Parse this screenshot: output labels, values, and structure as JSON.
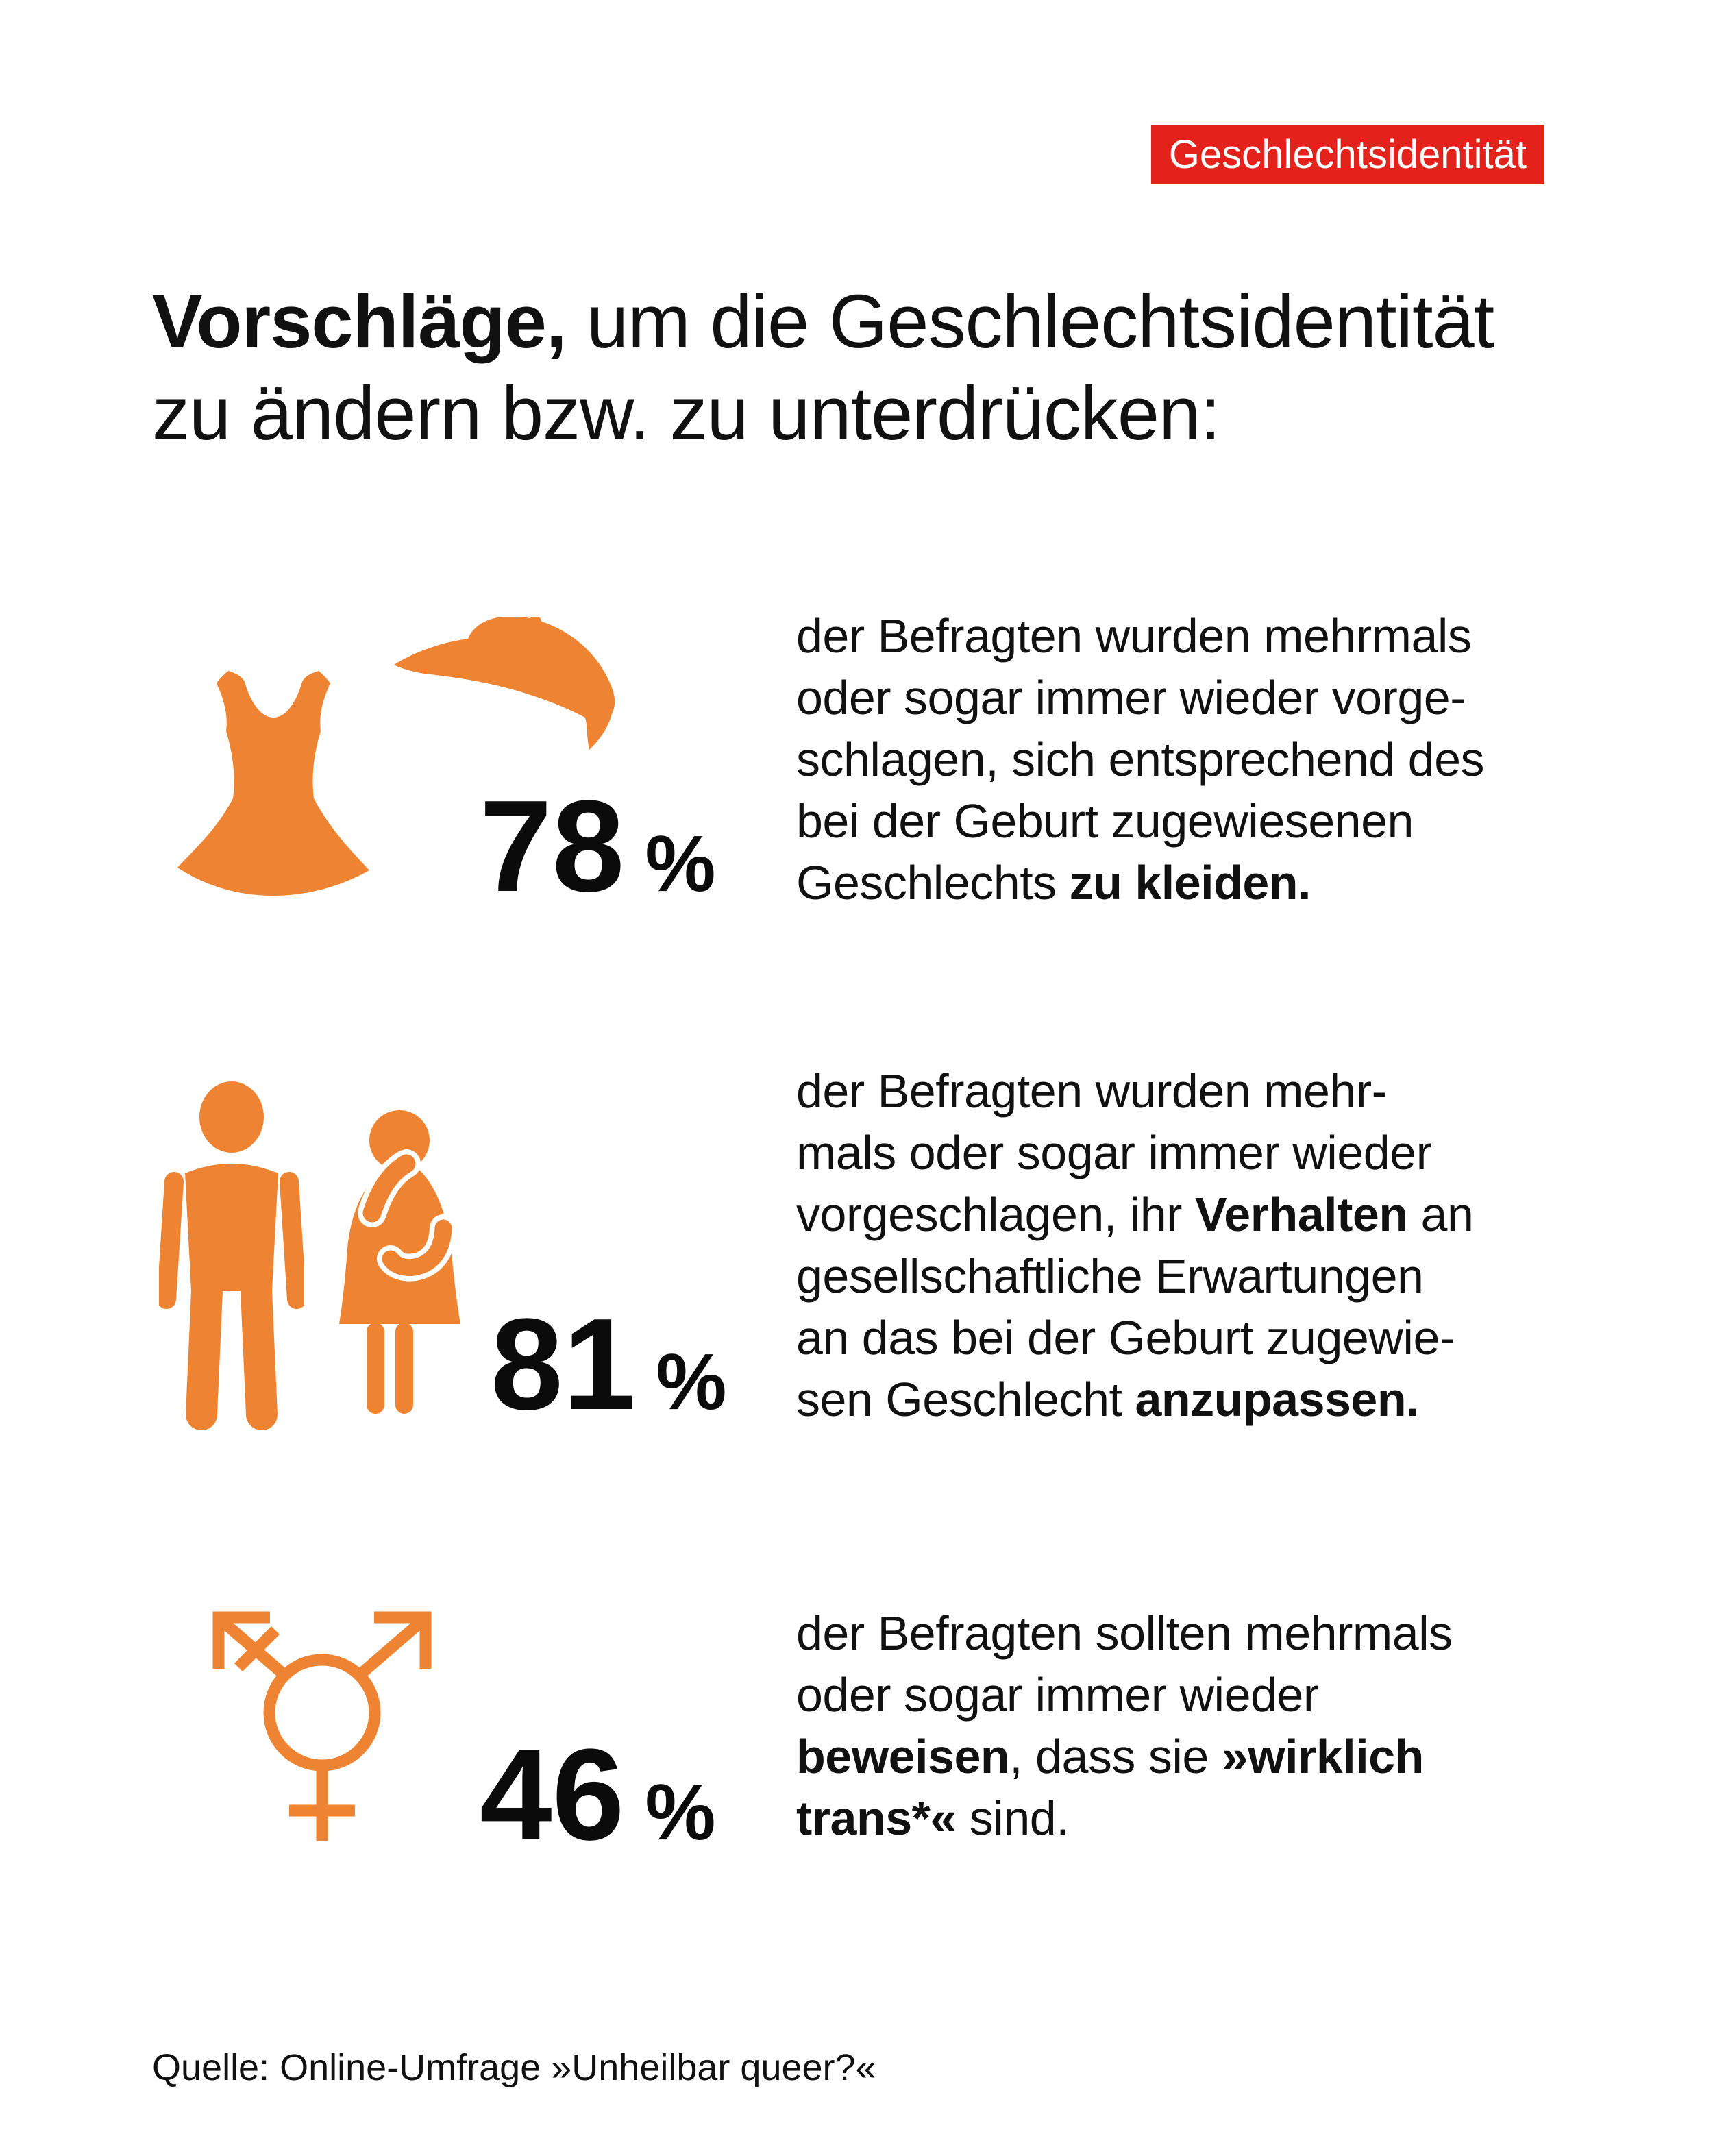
{
  "colors": {
    "accent_orange": "#EE8331",
    "badge_red": "#E3221C",
    "text_black": "#111111"
  },
  "badge": {
    "label": "Geschlechtsidentität"
  },
  "title": {
    "lines": [
      [
        {
          "t": "Vorschläge,",
          "b": true
        },
        {
          "t": " um die Geschlechtsidentität",
          "b": false
        }
      ],
      [
        {
          "t": "zu ändern bzw. zu unterdrücken:",
          "b": false
        }
      ]
    ]
  },
  "stats": [
    {
      "value": "78",
      "unit": "%",
      "icons": [
        "dress-icon",
        "cap-icon"
      ],
      "lines": [
        [
          {
            "t": "der Befragten wurden mehrmals"
          }
        ],
        [
          {
            "t": "oder sogar immer wieder vorge-"
          }
        ],
        [
          {
            "t": "schlagen, sich entsprechend des"
          }
        ],
        [
          {
            "t": "bei der Geburt zugewiesenen"
          }
        ],
        [
          {
            "t": "Geschlechts "
          },
          {
            "t": "zu kleiden.",
            "b": true
          }
        ]
      ]
    },
    {
      "value": "81",
      "unit": "%",
      "icons": [
        "man-icon",
        "woman-icon"
      ],
      "lines": [
        [
          {
            "t": "der Befragten wurden mehr-"
          }
        ],
        [
          {
            "t": "mals oder sogar immer wieder"
          }
        ],
        [
          {
            "t": "vorgeschlagen, ihr "
          },
          {
            "t": "Verhalten",
            "b": true
          },
          {
            "t": " an"
          }
        ],
        [
          {
            "t": "gesellschaftliche Erwartungen"
          }
        ],
        [
          {
            "t": "an das bei der Geburt zugewie-"
          }
        ],
        [
          {
            "t": "sen Geschlecht "
          },
          {
            "t": "anzupassen.",
            "b": true
          }
        ]
      ]
    },
    {
      "value": "46",
      "unit": "%",
      "icons": [
        "transgender-icon"
      ],
      "lines": [
        [
          {
            "t": "der Befragten sollten mehrmals"
          }
        ],
        [
          {
            "t": "oder sogar immer wieder"
          }
        ],
        [
          {
            "t": "beweisen",
            "b": true
          },
          {
            "t": ", dass sie "
          },
          {
            "t": "»wirklich",
            "b": true
          }
        ],
        [
          {
            "t": "trans*«",
            "b": true
          },
          {
            "t": " sind."
          }
        ]
      ]
    }
  ],
  "source": {
    "label": "Quelle: Online-Umfrage »Unheilbar queer?«"
  },
  "chart_data": {
    "type": "pictogram",
    "title": "Vorschläge, um die Geschlechtsidentität zu ändern bzw. zu unterdrücken:",
    "categories": [
      "sich entsprechend des bei der Geburt zugewiesenen Geschlechts zu kleiden",
      "Verhalten an gesellschaftliche Erwartungen an das bei der Geburt zugewiesen Geschlecht anzupassen",
      "beweisen, dass sie »wirklich trans*« sind"
    ],
    "values": [
      78,
      81,
      46
    ],
    "unit": "%",
    "badge": "Geschlechtsidentität",
    "source": "Quelle: Online-Umfrage »Unheilbar queer?«"
  }
}
